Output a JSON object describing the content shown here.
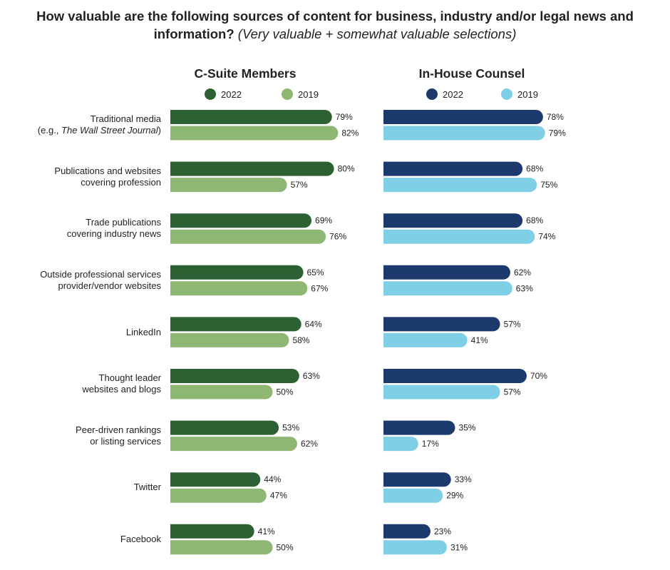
{
  "title": {
    "main": "How valuable are the following sources of content for business, industry and/or legal news and information?",
    "sub": "(Very valuable + somewhat valuable selections)"
  },
  "chart_data": {
    "type": "bar",
    "orientation": "horizontal",
    "categories": [
      {
        "line1": "Traditional media",
        "line2_prefix": "(e.g., ",
        "line2_italic": "The Wall Street Journal",
        "line2_suffix": ")"
      },
      {
        "line1": "Publications and websites",
        "line2": "covering profession"
      },
      {
        "line1": "Trade publications",
        "line2": "covering industry news"
      },
      {
        "line1": "Outside professional services",
        "line2": "provider/vendor websites"
      },
      {
        "line1": "LinkedIn"
      },
      {
        "line1": "Thought leader",
        "line2": "websites and blogs"
      },
      {
        "line1": "Peer-driven rankings",
        "line2": "or listing services"
      },
      {
        "line1": "Twitter"
      },
      {
        "line1": "Facebook"
      }
    ],
    "panels": [
      {
        "title": "C-Suite Members",
        "series": [
          {
            "name": "2022",
            "color": "#2d6133",
            "values": [
              79,
              80,
              69,
              65,
              64,
              63,
              53,
              44,
              41
            ]
          },
          {
            "name": "2019",
            "color": "#8fb774",
            "values": [
              82,
              57,
              76,
              67,
              58,
              50,
              62,
              47,
              50
            ]
          }
        ]
      },
      {
        "title": "In-House Counsel",
        "series": [
          {
            "name": "2022",
            "color": "#1d3a6e",
            "values": [
              78,
              68,
              68,
              62,
              57,
              70,
              35,
              33,
              23
            ]
          },
          {
            "name": "2019",
            "color": "#7fcfe6",
            "values": [
              79,
              75,
              74,
              63,
              41,
              57,
              17,
              29,
              31
            ]
          }
        ]
      }
    ],
    "value_suffix": "%",
    "xlim": [
      0,
      100
    ],
    "grid": false,
    "legend": "top"
  }
}
